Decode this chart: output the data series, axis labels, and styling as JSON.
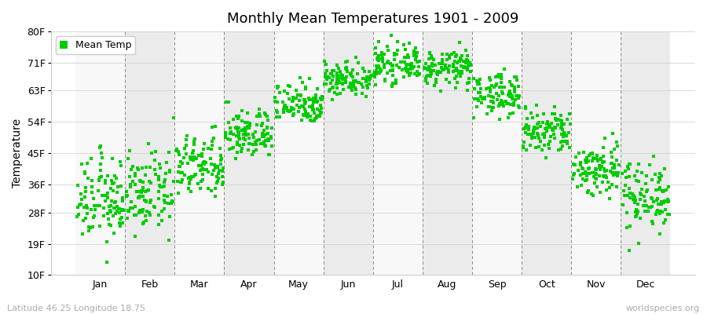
{
  "title": "Monthly Mean Temperatures 1901 - 2009",
  "ylabel": "Temperature",
  "dot_color": "#00cc00",
  "background_color": "#ffffff",
  "band_color_odd": "#ebebeb",
  "band_color_even": "#f8f8f8",
  "yticks": [
    10,
    19,
    28,
    36,
    45,
    54,
    63,
    71,
    80
  ],
  "ytick_labels": [
    "10F",
    "19F",
    "28F",
    "36F",
    "45F",
    "54F",
    "63F",
    "71F",
    "80F"
  ],
  "ylim": [
    10,
    80
  ],
  "months": [
    "Jan",
    "Feb",
    "Mar",
    "Apr",
    "May",
    "Jun",
    "Jul",
    "Aug",
    "Sep",
    "Oct",
    "Nov",
    "Dec"
  ],
  "n_years": 109,
  "mean_temps_f": [
    31.5,
    33.5,
    41.0,
    50.5,
    59.5,
    66.5,
    70.5,
    69.5,
    62.0,
    51.0,
    40.5,
    33.0
  ],
  "std_temps_f": [
    6.0,
    5.5,
    4.5,
    3.5,
    3.0,
    2.5,
    2.5,
    2.5,
    3.0,
    3.5,
    4.0,
    5.0
  ],
  "subtitle_left": "Latitude 46.25 Longitude 18.75",
  "subtitle_right": "worldspecies.org",
  "xlim_left": -0.5,
  "xlim_right": 12.5
}
